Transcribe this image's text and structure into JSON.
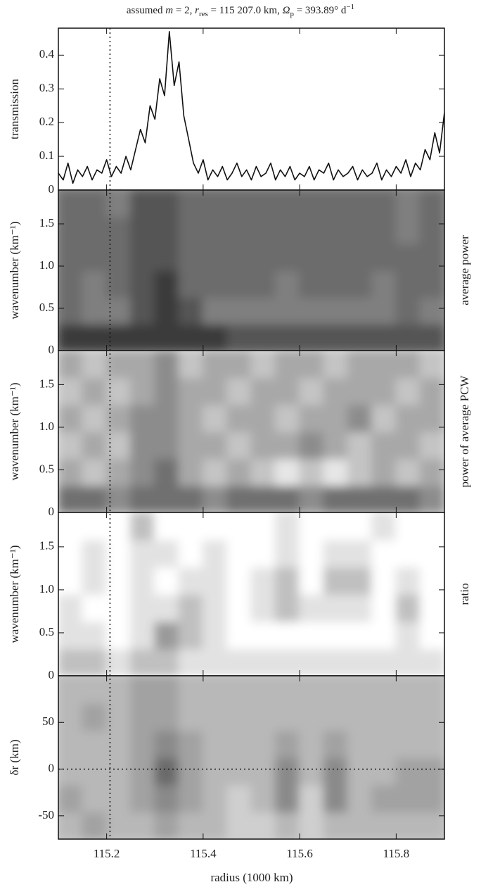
{
  "figure": {
    "title_parts": [
      "assumed ",
      "m",
      " = 2, ",
      "r",
      "res",
      " = 115 207.0 km, ",
      "Ω",
      "p",
      " = 393.89° d",
      "−1"
    ],
    "xlabel": "radius (1000 km)",
    "xlim": [
      115.1,
      115.9
    ],
    "xticks": [
      115.2,
      115.4,
      115.6,
      115.8
    ],
    "marker_x": 115.207
  },
  "chart_data": [
    {
      "type": "line",
      "ylabel": "transmission",
      "color": "#111111",
      "ylim": [
        0,
        0.48
      ],
      "yticks": [
        0,
        0.1,
        0.2,
        0.3,
        0.4
      ],
      "x": [
        115.1,
        115.11,
        115.12,
        115.13,
        115.14,
        115.15,
        115.16,
        115.17,
        115.18,
        115.19,
        115.2,
        115.21,
        115.22,
        115.23,
        115.24,
        115.25,
        115.26,
        115.27,
        115.28,
        115.29,
        115.3,
        115.31,
        115.32,
        115.33,
        115.34,
        115.35,
        115.36,
        115.37,
        115.38,
        115.39,
        115.4,
        115.41,
        115.42,
        115.43,
        115.44,
        115.45,
        115.46,
        115.47,
        115.48,
        115.49,
        115.5,
        115.51,
        115.52,
        115.53,
        115.54,
        115.55,
        115.56,
        115.57,
        115.58,
        115.59,
        115.6,
        115.61,
        115.62,
        115.63,
        115.64,
        115.65,
        115.66,
        115.67,
        115.68,
        115.69,
        115.7,
        115.71,
        115.72,
        115.73,
        115.74,
        115.75,
        115.76,
        115.77,
        115.78,
        115.79,
        115.8,
        115.81,
        115.82,
        115.83,
        115.84,
        115.85,
        115.86,
        115.87,
        115.88,
        115.89,
        115.9
      ],
      "values": [
        0.05,
        0.03,
        0.08,
        0.02,
        0.06,
        0.04,
        0.07,
        0.03,
        0.06,
        0.05,
        0.09,
        0.04,
        0.07,
        0.05,
        0.1,
        0.06,
        0.12,
        0.18,
        0.14,
        0.25,
        0.21,
        0.33,
        0.28,
        0.47,
        0.31,
        0.38,
        0.22,
        0.15,
        0.08,
        0.05,
        0.09,
        0.03,
        0.06,
        0.04,
        0.07,
        0.03,
        0.05,
        0.08,
        0.04,
        0.06,
        0.03,
        0.07,
        0.04,
        0.05,
        0.08,
        0.03,
        0.06,
        0.04,
        0.07,
        0.03,
        0.05,
        0.04,
        0.07,
        0.03,
        0.06,
        0.05,
        0.08,
        0.03,
        0.06,
        0.04,
        0.05,
        0.07,
        0.03,
        0.06,
        0.04,
        0.05,
        0.08,
        0.03,
        0.06,
        0.04,
        0.07,
        0.05,
        0.09,
        0.04,
        0.08,
        0.06,
        0.12,
        0.09,
        0.17,
        0.11,
        0.23
      ]
    },
    {
      "type": "contour",
      "ylabel": "wavenumber (km⁻¹)",
      "side_label": "average power",
      "ylim": [
        0,
        1.9
      ],
      "yticks": [
        0,
        0.5,
        {
          "value": 1,
          "label": "1.0"
        },
        1.5
      ],
      "colors": [
        "#9a9a9a",
        "#7f7f7f",
        "#6c6c6c",
        "#555555",
        "#3a3a3a"
      ],
      "z": [
        [
          4,
          4,
          4,
          4,
          4,
          4,
          4,
          3,
          3,
          3,
          3,
          3,
          3,
          3,
          3,
          3
        ],
        [
          2,
          1,
          1,
          3,
          4,
          3,
          1,
          1,
          1,
          1,
          1,
          1,
          1,
          1,
          2,
          1
        ],
        [
          2,
          1,
          2,
          3,
          4,
          2,
          2,
          2,
          2,
          1,
          2,
          2,
          2,
          1,
          2,
          2
        ],
        [
          2,
          2,
          2,
          3,
          3,
          2,
          2,
          2,
          2,
          2,
          2,
          2,
          2,
          2,
          2,
          2
        ],
        [
          2,
          2,
          2,
          3,
          3,
          2,
          2,
          2,
          2,
          2,
          2,
          2,
          2,
          2,
          1,
          2
        ],
        [
          2,
          2,
          1,
          3,
          3,
          2,
          2,
          2,
          2,
          2,
          2,
          2,
          2,
          2,
          1,
          2
        ]
      ]
    },
    {
      "type": "contour",
      "ylabel": "wavenumber (km⁻¹)",
      "side_label": "power of average PCW",
      "ylim": [
        0,
        1.9
      ],
      "yticks": [
        0,
        0.5,
        {
          "value": 1,
          "label": "1.0"
        },
        1.5
      ],
      "colors": [
        "#e6e6e6",
        "#c4c4c4",
        "#a8a8a8",
        "#8c8c8c",
        "#6f6f6f"
      ],
      "z": [
        [
          4,
          4,
          3,
          4,
          4,
          4,
          3,
          4,
          4,
          4,
          3,
          4,
          4,
          4,
          4,
          3
        ],
        [
          2,
          1,
          2,
          3,
          4,
          2,
          1,
          2,
          1,
          0,
          1,
          0,
          1,
          2,
          1,
          2
        ],
        [
          1,
          2,
          1,
          3,
          3,
          2,
          2,
          1,
          2,
          2,
          3,
          2,
          1,
          2,
          2,
          1
        ],
        [
          2,
          1,
          2,
          3,
          3,
          2,
          1,
          2,
          2,
          1,
          2,
          2,
          3,
          1,
          2,
          2
        ],
        [
          1,
          2,
          1,
          2,
          3,
          2,
          2,
          1,
          2,
          2,
          1,
          2,
          2,
          2,
          1,
          2
        ],
        [
          2,
          1,
          2,
          2,
          3,
          1,
          2,
          2,
          1,
          2,
          2,
          1,
          2,
          2,
          2,
          1
        ]
      ]
    },
    {
      "type": "contour",
      "ylabel": "wavenumber (km⁻¹)",
      "side_label": "ratio",
      "ylim": [
        0,
        1.9
      ],
      "yticks": [
        0,
        0.5,
        {
          "value": 1,
          "label": "1.0"
        },
        1.5
      ],
      "colors": [
        "#ffffff",
        "#e2e2e2",
        "#c0c0c0",
        "#9a9a9a",
        "#707070"
      ],
      "z": [
        [
          2,
          2,
          1,
          2,
          2,
          1,
          1,
          1,
          1,
          1,
          1,
          1,
          1,
          1,
          1,
          1
        ],
        [
          1,
          1,
          0,
          1,
          3,
          2,
          1,
          0,
          0,
          0,
          0,
          0,
          0,
          0,
          1,
          0
        ],
        [
          1,
          0,
          0,
          1,
          1,
          2,
          1,
          0,
          1,
          2,
          1,
          1,
          1,
          0,
          2,
          0
        ],
        [
          0,
          1,
          0,
          1,
          0,
          1,
          1,
          0,
          1,
          2,
          0,
          2,
          2,
          0,
          1,
          0
        ],
        [
          0,
          1,
          0,
          1,
          1,
          0,
          1,
          0,
          0,
          1,
          0,
          1,
          1,
          0,
          0,
          0
        ],
        [
          0,
          0,
          0,
          2,
          0,
          0,
          0,
          0,
          0,
          1,
          0,
          0,
          0,
          1,
          0,
          0
        ]
      ]
    },
    {
      "type": "contour",
      "ylabel": "δr (km)",
      "ylim": [
        -75,
        100
      ],
      "yticks": [
        -50,
        0,
        50
      ],
      "hline": 0,
      "colors": [
        "#cfcfcf",
        "#b8b8b8",
        "#a2a2a2",
        "#8a8a8a",
        "#6a6a6a"
      ],
      "z": [
        [
          1,
          2,
          1,
          1,
          2,
          1,
          1,
          0,
          0,
          1,
          0,
          1,
          1,
          1,
          1,
          1
        ],
        [
          2,
          1,
          1,
          2,
          3,
          2,
          1,
          0,
          1,
          3,
          0,
          3,
          1,
          2,
          2,
          2
        ],
        [
          1,
          1,
          1,
          2,
          4,
          2,
          1,
          1,
          1,
          3,
          1,
          3,
          1,
          1,
          2,
          2
        ],
        [
          1,
          1,
          1,
          2,
          3,
          2,
          1,
          1,
          1,
          2,
          1,
          2,
          1,
          1,
          1,
          1
        ],
        [
          1,
          2,
          1,
          2,
          2,
          1,
          1,
          1,
          1,
          1,
          1,
          1,
          1,
          1,
          1,
          1
        ],
        [
          1,
          1,
          1,
          2,
          2,
          1,
          1,
          1,
          1,
          1,
          1,
          1,
          1,
          1,
          1,
          1
        ]
      ]
    }
  ]
}
